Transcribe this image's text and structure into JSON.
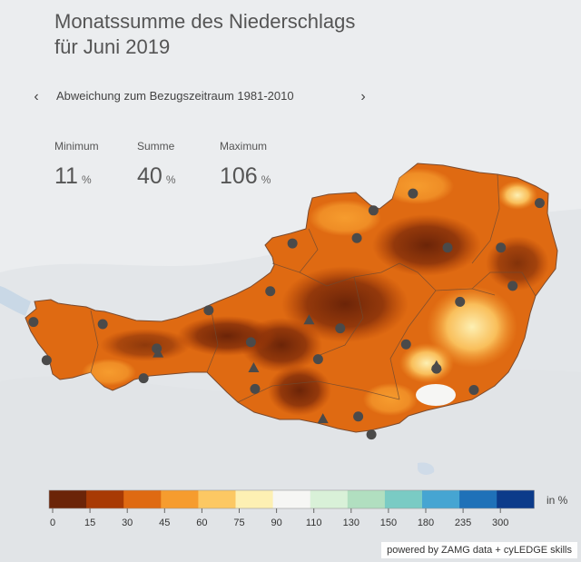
{
  "header": {
    "title_line1": "Monatssumme des Niederschlags",
    "title_line2": "für Juni 2019"
  },
  "nav": {
    "prev_icon": "chevron-left-icon",
    "prev_glyph": "‹",
    "next_icon": "chevron-right-icon",
    "next_glyph": "›",
    "subtitle": "Abweichung zum Bezugszeitraum 1981-2010"
  },
  "stats": [
    {
      "label": "Minimum",
      "value": "11",
      "unit": "%"
    },
    {
      "label": "Summe",
      "value": "40",
      "unit": "%"
    },
    {
      "label": "Maximum",
      "value": "106",
      "unit": "%"
    }
  ],
  "legend": {
    "unit": "in %",
    "ticks": [
      "0",
      "15",
      "30",
      "45",
      "60",
      "75",
      "90",
      "110",
      "130",
      "150",
      "180",
      "235",
      "300"
    ],
    "colors": [
      "#6b2408",
      "#a83a04",
      "#df6a12",
      "#f69c2e",
      "#fcc863",
      "#fdf0b3",
      "#f6f6f4",
      "#d9f1d8",
      "#b1dfc0",
      "#7acbc4",
      "#46a5d2",
      "#1f71b8",
      "#0c3b8a"
    ]
  },
  "map": {
    "stations": [
      {
        "type": "circle",
        "lon": 9.62,
        "lat": 47.51
      },
      {
        "type": "circle",
        "lon": 9.81,
        "lat": 47.15
      },
      {
        "type": "circle",
        "lon": 10.62,
        "lat": 47.49
      },
      {
        "type": "circle",
        "lon": 11.4,
        "lat": 47.26
      },
      {
        "type": "triangle",
        "lon": 11.42,
        "lat": 47.22
      },
      {
        "type": "circle",
        "lon": 11.21,
        "lat": 46.98
      },
      {
        "type": "circle",
        "lon": 12.15,
        "lat": 47.62
      },
      {
        "type": "circle",
        "lon": 12.76,
        "lat": 47.32
      },
      {
        "type": "triangle",
        "lon": 12.8,
        "lat": 47.08
      },
      {
        "type": "circle",
        "lon": 12.82,
        "lat": 46.88
      },
      {
        "type": "circle",
        "lon": 13.04,
        "lat": 47.8
      },
      {
        "type": "triangle",
        "lon": 13.6,
        "lat": 47.53
      },
      {
        "type": "circle",
        "lon": 13.36,
        "lat": 48.25
      },
      {
        "type": "circle",
        "lon": 13.73,
        "lat": 47.16
      },
      {
        "type": "circle",
        "lon": 14.05,
        "lat": 47.45
      },
      {
        "type": "circle",
        "lon": 14.29,
        "lat": 48.3
      },
      {
        "type": "circle",
        "lon": 14.53,
        "lat": 48.56
      },
      {
        "type": "circle",
        "lon": 14.31,
        "lat": 46.62
      },
      {
        "type": "triangle",
        "lon": 13.8,
        "lat": 46.6
      },
      {
        "type": "circle",
        "lon": 14.5,
        "lat": 46.45
      },
      {
        "type": "circle",
        "lon": 15.0,
        "lat": 47.3
      },
      {
        "type": "circle",
        "lon": 15.44,
        "lat": 47.07
      },
      {
        "type": "triangle",
        "lon": 15.44,
        "lat": 47.1
      },
      {
        "type": "circle",
        "lon": 15.6,
        "lat": 48.21
      },
      {
        "type": "circle",
        "lon": 15.78,
        "lat": 47.7
      },
      {
        "type": "circle",
        "lon": 15.1,
        "lat": 48.72
      },
      {
        "type": "circle",
        "lon": 16.37,
        "lat": 48.21
      },
      {
        "type": "circle",
        "lon": 16.93,
        "lat": 48.63
      },
      {
        "type": "circle",
        "lon": 16.54,
        "lat": 47.85
      },
      {
        "type": "circle",
        "lon": 15.98,
        "lat": 46.87
      }
    ]
  }
}
